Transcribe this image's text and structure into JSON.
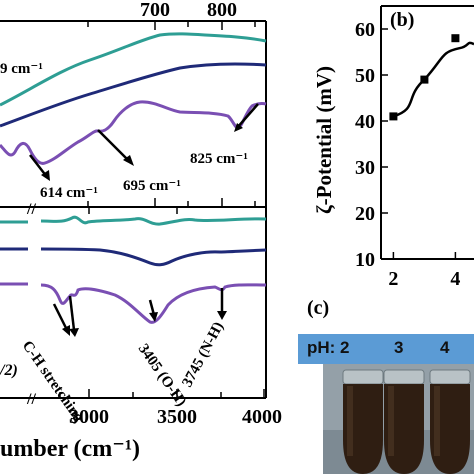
{
  "chart_data": [
    {
      "type": "line",
      "panel": "(a) upper",
      "x_tick_labels": [
        "700",
        "800"
      ],
      "series_count": 3,
      "annotations": [
        "9 cm⁻¹",
        "614 cm⁻¹",
        "695 cm⁻¹",
        "825 cm⁻¹"
      ],
      "colors": [
        "#2e9e94",
        "#1f2a78",
        "#7a4fb3"
      ]
    },
    {
      "type": "line",
      "panel": "(a) lower",
      "xlabel": "umber (cm⁻¹)",
      "x_tick_labels": [
        "3000",
        "3500",
        "4000"
      ],
      "xlim": [
        2600,
        4000
      ],
      "axis_break": "//",
      "annotations": [
        "C-H stretching",
        "3405 (O-H)",
        "3745 (N-H)"
      ],
      "partial_label": "/2)",
      "colors": [
        "#2e9e94",
        "#1f2a78",
        "#7a4fb3"
      ]
    },
    {
      "type": "line",
      "panel": "(b)",
      "panel_label": "(b)",
      "ylabel": "ζ-Potential (mV)",
      "x": [
        2,
        3,
        4
      ],
      "y": [
        41,
        49,
        58
      ],
      "x_tick_labels": [
        "2",
        "4"
      ],
      "y_ticks": [
        10,
        20,
        30,
        40,
        50,
        60
      ],
      "ylim": [
        10,
        65
      ],
      "xlim": [
        1.6,
        4.6
      ],
      "smooth_fit": true
    }
  ],
  "panel_c": {
    "label": "(c)",
    "ph_label": "pH: 2",
    "ph_values": [
      "3",
      "4"
    ]
  }
}
